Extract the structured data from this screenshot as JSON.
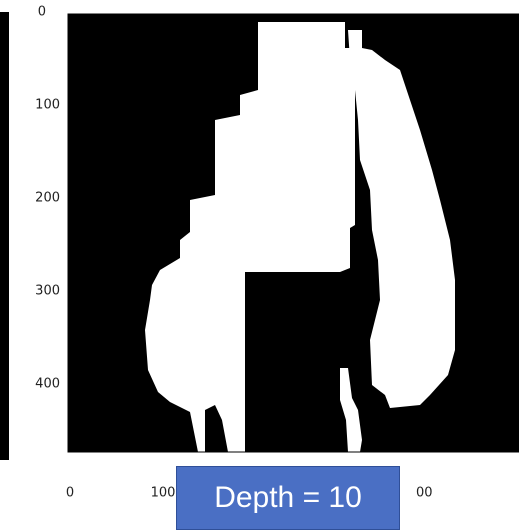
{
  "axes": {
    "yticks": [
      "0",
      "100",
      "200",
      "300",
      "400"
    ],
    "xticks": [
      "0",
      "100",
      "00"
    ]
  },
  "overlay": {
    "label": "Depth = 10"
  }
}
